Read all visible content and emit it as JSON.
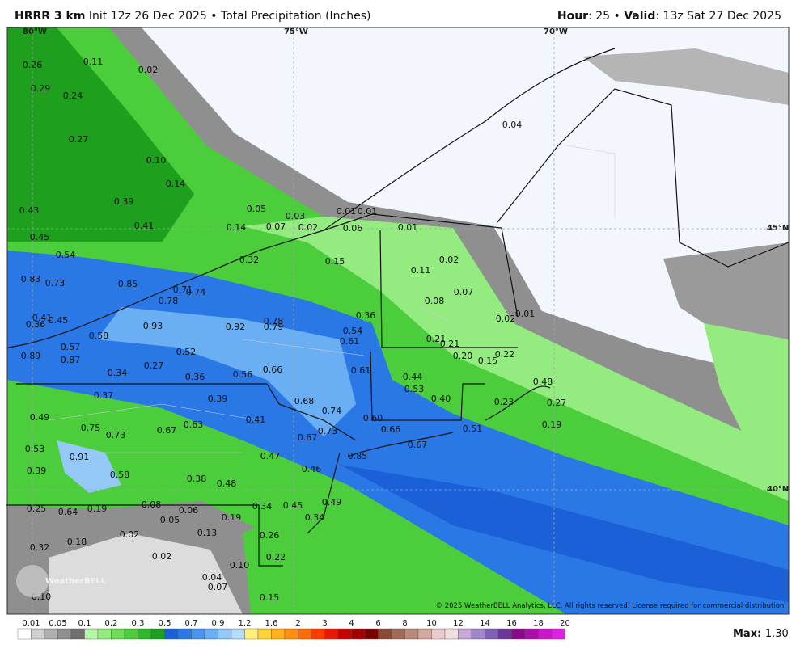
{
  "header": {
    "model": "HRRR 3 km",
    "init": "Init 12z 26 Dec 2025",
    "separator": "•",
    "product": "Total Precipitation (Inches)",
    "hour_label": "Hour",
    "hour_value": ": 25",
    "valid_label": "Valid",
    "valid_value": ": 13z Sat 27 Dec 2025"
  },
  "map": {
    "lon_labels": [
      "80°W",
      "75°W",
      "70°W"
    ],
    "lat_labels": [
      "45°N",
      "40°N"
    ],
    "stations": [
      "0.26",
      "0.11",
      "0.02",
      "0.29",
      "0.24",
      "0.27",
      "0.10",
      "0.14",
      "0.39",
      "0.43",
      "0.41",
      "0.45",
      "0.05",
      "0.03",
      "0.14",
      "0.07",
      "0.02",
      "0.01",
      "0.01",
      "0.06",
      "0.01",
      "0.54",
      "0.32",
      "0.15",
      "0.02",
      "0.11",
      "0.83",
      "0.73",
      "0.85",
      "0.71",
      "0.74",
      "0.07",
      "0.08",
      "0.78",
      "0.01",
      "0.02",
      "0.36",
      "0.41",
      "0.36",
      "0.45",
      "0.93",
      "0.92",
      "0.78",
      "0.79",
      "0.58",
      "0.54",
      "0.61",
      "0.21",
      "0.21",
      "0.57",
      "0.52",
      "0.20",
      "0.15",
      "0.22",
      "0.89",
      "0.87",
      "0.27",
      "0.61",
      "0.34",
      "0.36",
      "0.56",
      "0.66",
      "0.44",
      "0.48",
      "0.53",
      "0.37",
      "0.39",
      "0.68",
      "0.40",
      "0.23",
      "0.27",
      "0.49",
      "0.74",
      "0.41",
      "0.60",
      "0.19",
      "0.75",
      "0.67",
      "0.63",
      "0.66",
      "0.51",
      "0.73",
      "0.67",
      "0.73",
      "0.53",
      "0.91",
      "0.67",
      "0.47",
      "0.85",
      "0.39",
      "0.58",
      "0.46",
      "0.38",
      "0.48",
      "0.49",
      "0.08",
      "0.06",
      "0.34",
      "0.45",
      "0.25",
      "0.64",
      "0.19",
      "0.05",
      "0.19",
      "0.34",
      "0.13",
      "0.02",
      "0.26",
      "0.18",
      "0.32",
      "0.02",
      "0.22",
      "0.10",
      "0.04",
      "0.07",
      "0.10",
      "0.15",
      "0.04"
    ],
    "copyright": "© 2025 WeatherBELL Analytics, LLC. All rights reserved. License required for commercial distribution.",
    "logo": "WeatherBELL"
  },
  "legend": {
    "labels": [
      "0.01",
      "0.05",
      "0.1",
      "0.2",
      "0.3",
      "0.5",
      "0.7",
      "0.9",
      "1.2",
      "1.6",
      "2",
      "3",
      "4",
      "6",
      "8",
      "10",
      "12",
      "14",
      "16",
      "18",
      "20"
    ],
    "colors": [
      "#ffffff",
      "#cfcfcf",
      "#b0b0b0",
      "#8f8f8f",
      "#6f6f6f",
      "#b8f5a9",
      "#94eb80",
      "#6fdd5b",
      "#4ccd3b",
      "#2fb82a",
      "#1e9f1e",
      "#1b60d6",
      "#2a78e6",
      "#4a93ee",
      "#6aaef3",
      "#93c8f7",
      "#b6dcfa",
      "#fff07a",
      "#ffd23a",
      "#ffb21e",
      "#ff8f12",
      "#ff6a0a",
      "#ff3c00",
      "#e81800",
      "#c80000",
      "#a00000",
      "#7a0000",
      "#8a4a3a",
      "#a06a5a",
      "#b88a7a",
      "#d0aaa0",
      "#e8cccc",
      "#f0dede",
      "#c8a8d8",
      "#a088c8",
      "#8060b0",
      "#6a3898",
      "#8a0a8a",
      "#a810a8",
      "#c818c8",
      "#e020e0"
    ],
    "max_label": "Max",
    "max_value": "1.30"
  }
}
